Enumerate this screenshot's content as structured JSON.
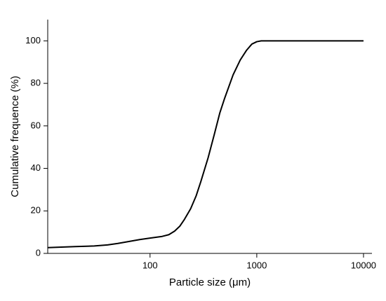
{
  "chart_data": {
    "type": "line",
    "xlabel": "Particle size (μm)",
    "ylabel": "Cumulative frequence (%)",
    "xscale": "log",
    "x": [
      11,
      20,
      30,
      40,
      50,
      60,
      80,
      100,
      130,
      150,
      170,
      190,
      210,
      240,
      270,
      300,
      350,
      400,
      450,
      500,
      600,
      700,
      800,
      900,
      1000,
      1100,
      10000
    ],
    "series": [
      {
        "color": "#000000",
        "values": [
          2.7,
          3.2,
          3.5,
          4.0,
          4.7,
          5.4,
          6.5,
          7.2,
          8.0,
          8.8,
          10.5,
          12.8,
          16,
          21,
          27,
          34,
          45,
          56,
          66,
          73,
          84,
          91,
          95.5,
          98.5,
          99.6,
          100,
          100
        ]
      }
    ],
    "xlim": [
      11,
      12000
    ],
    "xticks": [
      100,
      1000,
      10000
    ],
    "ylim": [
      0,
      110
    ],
    "yticks": [
      0,
      20,
      40,
      60,
      80,
      100
    ]
  }
}
